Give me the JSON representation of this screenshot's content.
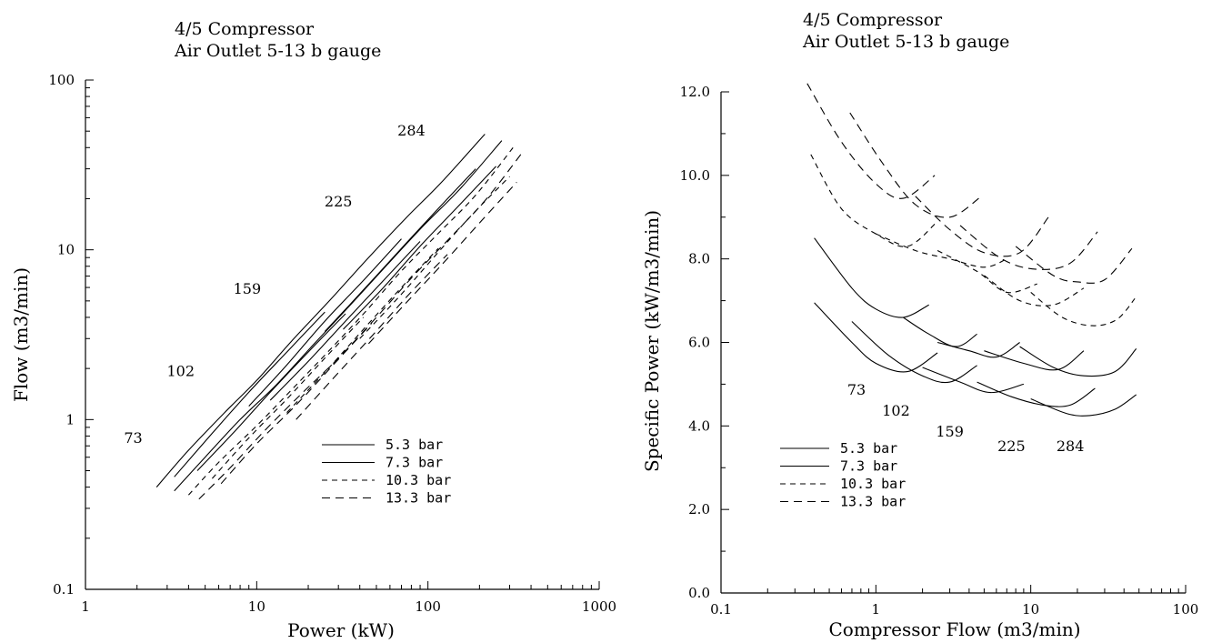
{
  "chart_data": [
    {
      "type": "line",
      "title": [
        "4/5 Compressor",
        "Air Outlet 5-13 b gauge"
      ],
      "xlabel": "Power (kW)",
      "ylabel": "Flow (m3/min)",
      "x_scale": "log",
      "y_scale": "log",
      "xlim": [
        1,
        1000
      ],
      "ylim": [
        0.1,
        100
      ],
      "x_ticks": [
        1,
        10,
        100,
        1000
      ],
      "x_tick_labels": [
        "1",
        "10",
        "100",
        "1000"
      ],
      "y_ticks": [
        0.1,
        1,
        10,
        100
      ],
      "y_tick_labels": [
        "0.1",
        "1",
        "10",
        "100"
      ],
      "legend_position": "bottom-right",
      "annotations": [
        {
          "text": "73",
          "x": 1.9,
          "y": 0.73
        },
        {
          "text": "102",
          "x": 3.6,
          "y": 1.8
        },
        {
          "text": "159",
          "x": 8.8,
          "y": 5.5
        },
        {
          "text": "225",
          "x": 30,
          "y": 18
        },
        {
          "text": "284",
          "x": 80,
          "y": 47
        }
      ],
      "series": [
        {
          "name": "5.3 bar",
          "dash": "solid",
          "curves": [
            {
              "power": [
                2.6,
                4,
                6.5,
                10,
                16,
                27,
                45,
                75,
                120,
                215
              ],
              "flow": [
                0.4,
                0.66,
                1.1,
                1.7,
                2.9,
                5.1,
                9.0,
                15.5,
                25,
                48
              ]
            },
            {
              "power": [
                3.3,
                5.5,
                9,
                15,
                25
              ],
              "flow": [
                0.46,
                0.83,
                1.45,
                2.5,
                4.3
              ]
            },
            {
              "power": [
                9,
                15,
                25,
                42,
                70
              ],
              "flow": [
                1.2,
                2.1,
                3.8,
                6.6,
                11.6
              ]
            },
            {
              "power": [
                25,
                42,
                70,
                115,
                190
              ],
              "flow": [
                3.3,
                5.8,
                10.2,
                17.5,
                30
              ]
            }
          ]
        },
        {
          "name": "7.3 bar",
          "dash": "solid",
          "curves": [
            {
              "power": [
                3.3,
                5,
                8,
                13,
                21,
                35,
                58,
                95,
                155,
                270
              ],
              "flow": [
                0.38,
                0.6,
                1.0,
                1.6,
                2.7,
                4.7,
                8.2,
                14,
                23,
                44
              ]
            },
            {
              "power": [
                4.5,
                7.5,
                12,
                20,
                33
              ],
              "flow": [
                0.5,
                0.86,
                1.45,
                2.5,
                4.2
              ]
            },
            {
              "power": [
                12,
                20,
                33,
                55,
                90
              ],
              "flow": [
                1.3,
                2.2,
                3.8,
                6.6,
                11.2
              ]
            },
            {
              "power": [
                32,
                55,
                90,
                150,
                250
              ],
              "flow": [
                3.4,
                6.0,
                10.5,
                18,
                31
              ]
            }
          ]
        },
        {
          "name": "10.3 bar",
          "dash": "6,5",
          "curves": [
            {
              "power": [
                4,
                6,
                10,
                16,
                26,
                43,
                70,
                115,
                190,
                320
              ],
              "flow": [
                0.36,
                0.56,
                0.92,
                1.5,
                2.5,
                4.3,
                7.5,
                12.5,
                21,
                41
              ]
            },
            {
              "power": [
                5.5,
                9,
                15,
                25,
                42
              ],
              "flow": [
                0.45,
                0.78,
                1.32,
                2.3,
                4.0
              ]
            },
            {
              "power": [
                15,
                25,
                42,
                70,
                115
              ],
              "flow": [
                1.1,
                1.9,
                3.4,
                6.0,
                10.2
              ]
            },
            {
              "power": [
                40,
                68,
                110,
                180,
                300
              ],
              "flow": [
                3.0,
                5.3,
                9.2,
                16,
                27
              ]
            }
          ]
        },
        {
          "name": "13.3 bar",
          "dash": "9,6",
          "curves": [
            {
              "power": [
                4.6,
                7,
                11,
                18,
                30,
                50,
                82,
                135,
                220,
                360
              ],
              "flow": [
                0.34,
                0.52,
                0.85,
                1.4,
                2.3,
                4.0,
                7.0,
                11.8,
                20,
                38
              ]
            },
            {
              "power": [
                6.2,
                10,
                17,
                28,
                47
              ],
              "flow": [
                0.42,
                0.72,
                1.22,
                2.1,
                3.7
              ]
            },
            {
              "power": [
                17,
                28,
                47,
                78,
                130
              ],
              "flow": [
                1.0,
                1.75,
                3.1,
                5.5,
                9.4
              ]
            },
            {
              "power": [
                45,
                75,
                125,
                205,
                330
              ],
              "flow": [
                2.8,
                4.9,
                8.5,
                14.8,
                25
              ]
            }
          ]
        }
      ]
    },
    {
      "type": "line",
      "title": [
        "4/5 Compressor",
        "Air Outlet 5-13 b gauge"
      ],
      "xlabel": "Compressor Flow (m3/min)",
      "ylabel": "Specific Power (kW/m3/min)",
      "x_scale": "log",
      "y_scale": "linear",
      "xlim": [
        0.1,
        100
      ],
      "ylim": [
        0,
        12
      ],
      "x_ticks": [
        0.1,
        1,
        10,
        100
      ],
      "x_tick_labels": [
        "0.1",
        "1",
        "10",
        "100"
      ],
      "y_ticks": [
        0,
        2,
        4,
        6,
        8,
        10,
        12
      ],
      "y_tick_labels": [
        "0.0",
        "2.0",
        "4.0",
        "6.0",
        "8.0",
        "10.0",
        "12.0"
      ],
      "legend_position": "bottom-left",
      "annotations": [
        {
          "text": "73",
          "x": 0.75,
          "y": 4.75
        },
        {
          "text": "102",
          "x": 1.35,
          "y": 4.25
        },
        {
          "text": "159",
          "x": 3.0,
          "y": 3.75
        },
        {
          "text": "225",
          "x": 7.5,
          "y": 3.4
        },
        {
          "text": "284",
          "x": 18,
          "y": 3.4
        }
      ],
      "series": [
        {
          "name": "5.3 bar",
          "dash": "solid",
          "curves": [
            {
              "flow": [
                0.4,
                0.7,
                1.0,
                1.5,
                2.2
              ],
              "spec_power": [
                8.5,
                7.3,
                6.8,
                6.6,
                6.9
              ]
            },
            {
              "flow": [
                1.5,
                2.2,
                3.3,
                4.5
              ],
              "spec_power": [
                6.6,
                6.2,
                5.9,
                6.2
              ]
            },
            {
              "flow": [
                2.5,
                4.0,
                6.0,
                8.5
              ],
              "spec_power": [
                6.0,
                5.8,
                5.65,
                6.0
              ]
            },
            {
              "flow": [
                5.0,
                9.0,
                15,
                22
              ],
              "spec_power": [
                5.8,
                5.5,
                5.35,
                5.8
              ]
            },
            {
              "flow": [
                8.5,
                14,
                22,
                35,
                48
              ],
              "spec_power": [
                5.9,
                5.4,
                5.2,
                5.3,
                5.85
              ]
            }
          ]
        },
        {
          "name": "7.3 bar",
          "dash": "solid",
          "curves": [
            {
              "flow": [
                0.4,
                0.7,
                1.0,
                1.6,
                2.5
              ],
              "spec_power": [
                6.95,
                6.0,
                5.5,
                5.3,
                5.75
              ]
            },
            {
              "flow": [
                0.7,
                1.2,
                2.0,
                3.0,
                4.5
              ],
              "spec_power": [
                6.5,
                5.7,
                5.2,
                5.05,
                5.45
              ]
            },
            {
              "flow": [
                2.0,
                3.5,
                5.5,
                9.0
              ],
              "spec_power": [
                5.4,
                5.05,
                4.8,
                5.0
              ]
            },
            {
              "flow": [
                4.5,
                7.5,
                12,
                18,
                26
              ],
              "spec_power": [
                5.05,
                4.7,
                4.5,
                4.5,
                4.9
              ]
            },
            {
              "flow": [
                10,
                17,
                24,
                35,
                48
              ],
              "spec_power": [
                4.65,
                4.3,
                4.25,
                4.4,
                4.75
              ]
            }
          ]
        },
        {
          "name": "10.3 bar",
          "dash": "6,5",
          "curves": [
            {
              "flow": [
                0.38,
                0.6,
                1.0,
                1.6,
                2.5
              ],
              "spec_power": [
                10.5,
                9.2,
                8.6,
                8.3,
                8.9
              ]
            },
            {
              "flow": [
                1.0,
                1.8,
                3.0,
                5.0,
                7.0
              ],
              "spec_power": [
                8.6,
                8.2,
                8.0,
                7.8,
                8.0
              ]
            },
            {
              "flow": [
                2.5,
                4.5,
                7.0,
                11
              ],
              "spec_power": [
                8.2,
                7.7,
                7.2,
                7.4
              ]
            },
            {
              "flow": [
                5.0,
                8.5,
                14,
                22
              ],
              "spec_power": [
                7.6,
                7.0,
                6.9,
                7.3
              ]
            },
            {
              "flow": [
                10,
                16,
                25,
                36,
                47
              ],
              "spec_power": [
                7.2,
                6.6,
                6.4,
                6.55,
                7.05
              ]
            }
          ]
        },
        {
          "name": "13.3 bar",
          "dash": "9,6",
          "curves": [
            {
              "flow": [
                0.36,
                0.6,
                1.0,
                1.5,
                2.4
              ],
              "spec_power": [
                12.2,
                10.8,
                9.8,
                9.45,
                10.0
              ]
            },
            {
              "flow": [
                0.68,
                1.1,
                1.8,
                3.0,
                4.8
              ],
              "spec_power": [
                11.5,
                10.3,
                9.3,
                9.0,
                9.5
              ]
            },
            {
              "flow": [
                1.8,
                3.0,
                5.0,
                8.5,
                13
              ],
              "spec_power": [
                9.5,
                8.7,
                8.15,
                8.15,
                9.0
              ]
            },
            {
              "flow": [
                3.5,
                6.5,
                11,
                18,
                27
              ],
              "spec_power": [
                8.8,
                8.0,
                7.75,
                7.9,
                8.65
              ]
            },
            {
              "flow": [
                8.0,
                14,
                20,
                30,
                45
              ],
              "spec_power": [
                8.3,
                7.6,
                7.45,
                7.5,
                8.25
              ]
            }
          ]
        }
      ]
    }
  ]
}
